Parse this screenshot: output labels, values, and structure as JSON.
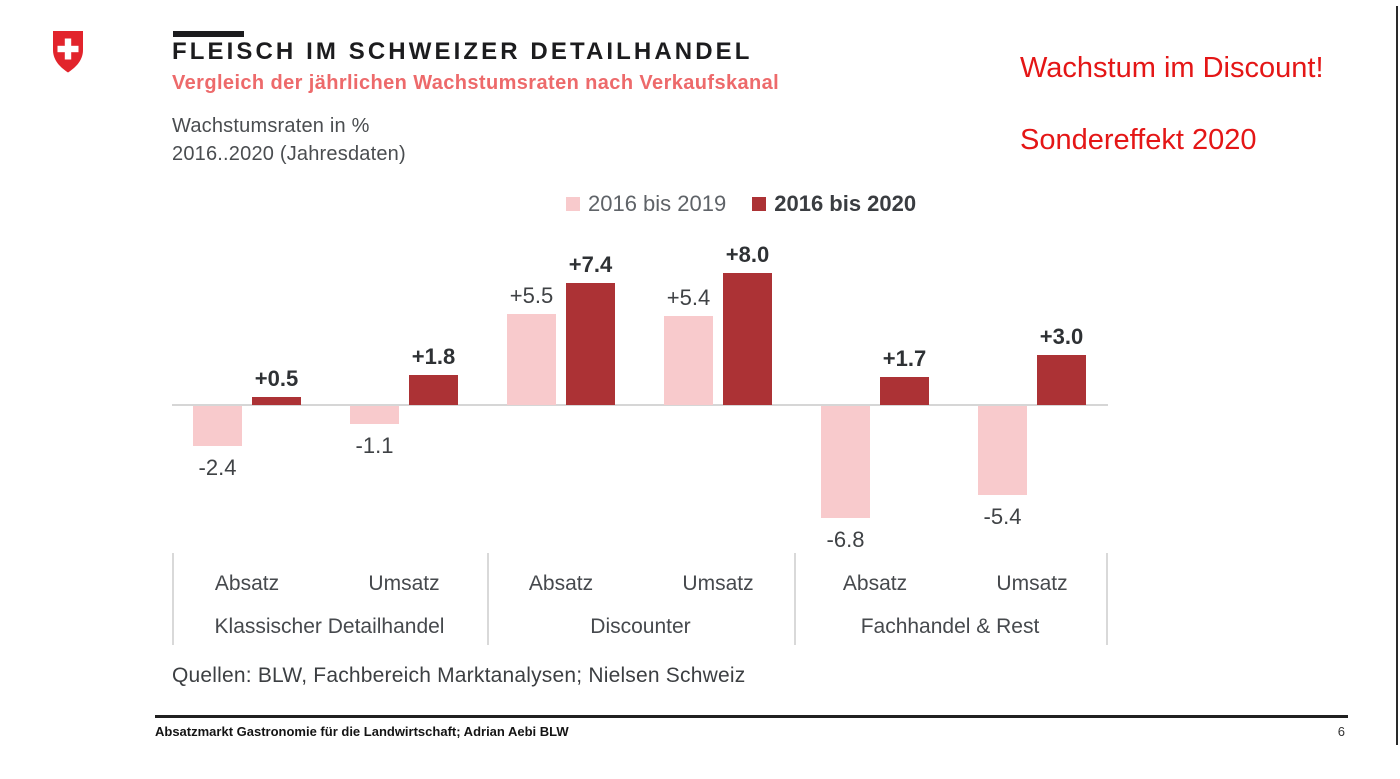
{
  "slide": {
    "logo": "swiss-federal-coat-of-arms",
    "logo_red": "#e2242c",
    "title": "FLEISCH IM SCHWEIZER DETAILHANDEL",
    "subtitle": "Vergleich der jährlichen Wachstumsraten nach Verkaufskanal",
    "y_note_line1": "Wachstumsraten in %",
    "y_note_line2": "2016..2020  (Jahresdaten)",
    "annotation_line1": "Wachstum im Discount!",
    "annotation_line2": "Sondereffekt 2020",
    "annotation_color": "#e41616",
    "source": "Quellen: BLW, Fachbereich Marktanalysen;  Nielsen Schweiz",
    "footer_text": "Absatzmarkt Gastronomie für die Landwirtschaft; Adrian Aebi BLW",
    "page_number": "6"
  },
  "chart_data": {
    "type": "bar",
    "title": "Wachstumsraten in % 2016..2020 (Jahresdaten)",
    "unit": "%",
    "categories": [
      "Absatz",
      "Umsatz",
      "Absatz",
      "Umsatz",
      "Absatz",
      "Umsatz"
    ],
    "group_labels": [
      "Klassischer Detailhandel",
      "Discounter",
      "Fachhandel & Rest"
    ],
    "series": [
      {
        "name": "2016 bis 2019",
        "color": "#f8cacc",
        "values": [
          -2.4,
          -1.1,
          5.5,
          5.4,
          -6.8,
          -5.4
        ],
        "labels": [
          "-2.4",
          "-1.1",
          "+5.5",
          "+5.4",
          "-6.8",
          "-5.4"
        ]
      },
      {
        "name": "2016 bis 2020",
        "color": "#ac3235",
        "values": [
          0.5,
          1.8,
          7.4,
          8.0,
          1.7,
          3.0
        ],
        "labels": [
          "+0.5",
          "+1.8",
          "+7.4",
          "+8.0",
          "+1.7",
          "+3.0"
        ]
      }
    ],
    "ylim": [
      -8,
      9
    ],
    "grid": false,
    "legend_position": "top-center",
    "axis_color": "#d6d6d6"
  }
}
